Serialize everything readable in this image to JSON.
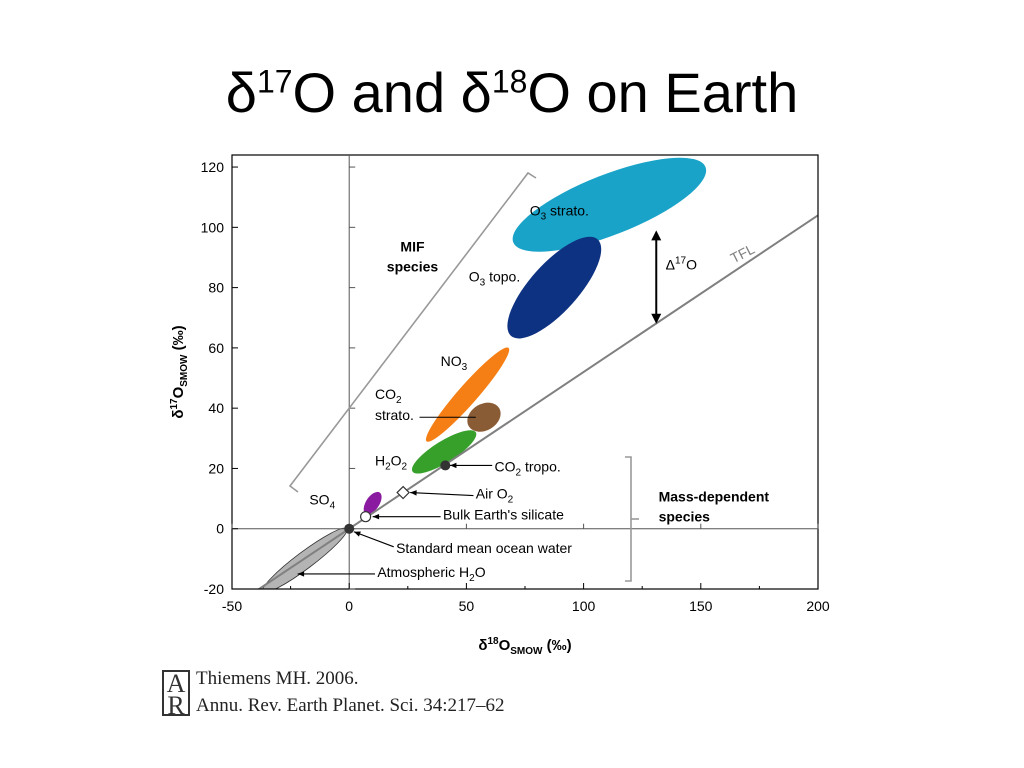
{
  "slide": {
    "title": {
      "delta": "δ",
      "sup1": "17",
      "mid": "O and δ",
      "sup2": "18",
      "tail": "O on Earth"
    }
  },
  "chart_data": {
    "type": "scatter",
    "xlabel": {
      "delta": "δ",
      "sup": "18",
      "main": "O",
      "sub": "SMOW",
      "unit": " (‰)"
    },
    "ylabel": {
      "delta": "δ",
      "sup": "17",
      "main": "O",
      "sub": "SMOW",
      "unit": " (‰)"
    },
    "xlim": [
      -50,
      200
    ],
    "ylim": [
      -20,
      124
    ],
    "xticks": [
      -50,
      0,
      50,
      100,
      150,
      200
    ],
    "yticks": [
      -20,
      0,
      20,
      40,
      60,
      80,
      100,
      120
    ],
    "grid": false,
    "lines": [
      {
        "name": "TFL",
        "slope": 0.52,
        "intercept": 0,
        "color": "#808080"
      }
    ],
    "regions": [
      {
        "name": "O3 strato.",
        "from": [
          70,
          95
        ],
        "to": [
          152,
          120
        ],
        "width": 10,
        "color": "#1aa3c8"
      },
      {
        "name": "O3 topo.",
        "from": [
          69,
          64
        ],
        "to": [
          106,
          96
        ],
        "width": 8,
        "color": "#0e3282"
      },
      {
        "name": "NO3",
        "from": [
          33,
          29
        ],
        "to": [
          68,
          60
        ],
        "width": 3.2,
        "color": "#f57f14"
      },
      {
        "name": "CO2 strato.",
        "from": [
          51,
          34
        ],
        "to": [
          64,
          40
        ],
        "width": 4.4,
        "color": "#8a5c36"
      },
      {
        "name": "H2O2",
        "from": [
          27,
          19
        ],
        "to": [
          54,
          32
        ],
        "width": 3.6,
        "color": "#36a02a"
      },
      {
        "name": "SO4",
        "from": [
          7,
          5
        ],
        "to": [
          13,
          12
        ],
        "width": 2.2,
        "color": "#8a1aa0"
      },
      {
        "name": "Atmospheric H2O",
        "from": [
          -37,
          -21
        ],
        "to": [
          -1,
          0
        ],
        "width": 2.8,
        "color": "#b4b4b4"
      }
    ],
    "points": [
      {
        "name": "CO2 tropo.",
        "x": 41,
        "y": 21,
        "marker": "filled-circle"
      },
      {
        "name": "Air O2",
        "x": 23,
        "y": 12,
        "marker": "open-diamond"
      },
      {
        "name": "Bulk Earth's silicate",
        "x": 7,
        "y": 4,
        "marker": "open-circle"
      },
      {
        "name": "Standard mean ocean water",
        "x": 0,
        "y": 0,
        "marker": "filled-circle"
      }
    ],
    "labels": [
      {
        "key": "o3strato",
        "parts": [
          [
            "O",
            "n"
          ],
          [
            "3",
            "sub"
          ],
          [
            " strato.",
            "n"
          ]
        ],
        "x": 77,
        "y": 104,
        "anchor": "start"
      },
      {
        "key": "o3topo",
        "parts": [
          [
            "O",
            "n"
          ],
          [
            "3",
            "sub"
          ],
          [
            " topo.",
            "n"
          ]
        ],
        "x": 51,
        "y": 82,
        "anchor": "start"
      },
      {
        "key": "no3",
        "parts": [
          [
            "NO",
            "n"
          ],
          [
            "3",
            "sub"
          ]
        ],
        "x": 39,
        "y": 54,
        "anchor": "start"
      },
      {
        "key": "co2strato1",
        "parts": [
          [
            "CO",
            "n"
          ],
          [
            "2",
            "sub"
          ]
        ],
        "x": 11,
        "y": 43,
        "anchor": "start"
      },
      {
        "key": "co2strato2",
        "parts": [
          [
            "strato.",
            "n"
          ]
        ],
        "x": 11,
        "y": 36,
        "anchor": "start"
      },
      {
        "key": "h2o2",
        "parts": [
          [
            "H",
            "n"
          ],
          [
            "2",
            "sub"
          ],
          [
            "O",
            "n"
          ],
          [
            "2",
            "sub"
          ]
        ],
        "x": 11,
        "y": 21,
        "anchor": "start"
      },
      {
        "key": "so4",
        "parts": [
          [
            "SO",
            "n"
          ],
          [
            "4",
            "sub"
          ]
        ],
        "x": -17,
        "y": 8,
        "anchor": "start"
      },
      {
        "key": "co2tropo",
        "parts": [
          [
            "CO",
            "n"
          ],
          [
            "2",
            "sub"
          ],
          [
            " tropo.",
            "n"
          ]
        ],
        "x": 62,
        "y": 19,
        "anchor": "start"
      },
      {
        "key": "airo2",
        "parts": [
          [
            "Air O",
            "n"
          ],
          [
            "2",
            "sub"
          ]
        ],
        "x": 54,
        "y": 10,
        "anchor": "start"
      },
      {
        "key": "bulk",
        "parts": [
          [
            "Bulk Earth's silicate",
            "n"
          ]
        ],
        "x": 40,
        "y": 3,
        "anchor": "start"
      },
      {
        "key": "smow",
        "parts": [
          [
            "Standard mean ocean water",
            "n"
          ]
        ],
        "x": 20,
        "y": -8,
        "anchor": "start"
      },
      {
        "key": "atmh2o",
        "parts": [
          [
            "Atmospheric H",
            "n"
          ],
          [
            "2",
            "sub"
          ],
          [
            "O",
            "n"
          ]
        ],
        "x": 12,
        "y": -16,
        "anchor": "start"
      },
      {
        "key": "tfl",
        "parts": [
          [
            "TFL",
            "n"
          ]
        ],
        "x": 164,
        "y": 88,
        "anchor": "start",
        "color": "#808080",
        "rotate": true
      },
      {
        "key": "d17o",
        "parts": [
          [
            "Δ",
            "n"
          ],
          [
            "17",
            "sup"
          ],
          [
            "O",
            "n"
          ]
        ],
        "x": 135,
        "y": 86,
        "anchor": "start"
      }
    ],
    "groups": [
      {
        "key": "mif",
        "lines": [
          "MIF",
          "species"
        ],
        "bold": true,
        "x": 27,
        "y": 92
      },
      {
        "key": "massdep",
        "lines": [
          "Mass-dependent",
          "species"
        ],
        "bold": true,
        "x": 132,
        "y": 9
      }
    ],
    "delta17O_arrow": {
      "x": 131,
      "y_top": 99,
      "y_bottom": 68
    }
  },
  "citation": {
    "logo": {
      "top": "A",
      "bottom": "R"
    },
    "line1": "Thiemens MH. 2006.",
    "line2": "Annu. Rev. Earth Planet. Sci. 34:217–62"
  }
}
